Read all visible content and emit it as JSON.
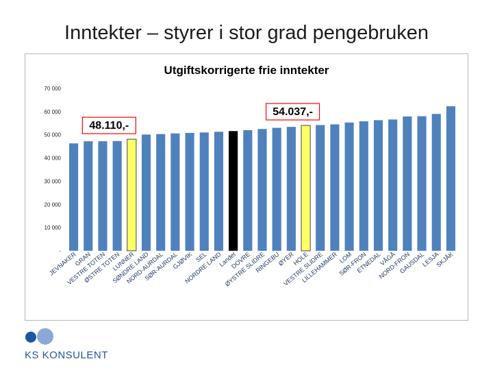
{
  "slide": {
    "title": "Inntekter – styrer i stor grad pengebruken",
    "logo_text": "KS KONSULENT",
    "logo_icon": "ks-konsulent-circles-logo"
  },
  "chart_data": {
    "type": "bar",
    "title": "Utgiftskorrigerte frie inntekter",
    "xlabel": "",
    "ylabel": "",
    "ylim": [
      0,
      70000
    ],
    "yticks": [
      0,
      10000,
      20000,
      30000,
      40000,
      50000,
      60000,
      70000
    ],
    "ytick_labels": [
      "-",
      "10 000",
      "20 000",
      "30 000",
      "40 000",
      "50 000",
      "60 000",
      "70 000"
    ],
    "grid": false,
    "legend": "none",
    "categories": [
      "JEVNAKER",
      "GRAN",
      "VESTRE TOTEN",
      "ØSTRE TOTEN",
      "LUNNER",
      "SØNDRE LAND",
      "NORD-AURDAL",
      "SØR-AURDAL",
      "GJØVIK",
      "SEL",
      "NORDRE LAND",
      "Landet",
      "DOVRE",
      "ØYSTRE SLIDRE",
      "RINGEBU",
      "ØYER",
      "HOLE",
      "VESTRE SLIDRE",
      "LILLEHAMMER",
      "LOM",
      "SØR-FRON",
      "ETNEDAL",
      "VÅGÅ",
      "NORD-FRON",
      "GAUSDAL",
      "LESJA",
      "SKJÅK"
    ],
    "values": [
      46300,
      47200,
      47200,
      47300,
      48110,
      50100,
      50300,
      50600,
      50800,
      51000,
      51300,
      51600,
      52000,
      52500,
      53000,
      53400,
      54037,
      54200,
      54500,
      55300,
      55800,
      56300,
      56600,
      57900,
      58000,
      59000,
      62300
    ],
    "bar_colors": {
      "default": "#4f81bd",
      "highlight_left": "#ffff66",
      "highlight_right": "#ffff66",
      "national": "#000000"
    },
    "highlighted": [
      4,
      16
    ],
    "national_index": 11,
    "annotations": [
      {
        "text": "48.110,-",
        "category": "LUNNER",
        "border": "#ff0000"
      },
      {
        "text": "54.037,-",
        "category": "HOLE",
        "border": "#ff0000"
      }
    ]
  }
}
